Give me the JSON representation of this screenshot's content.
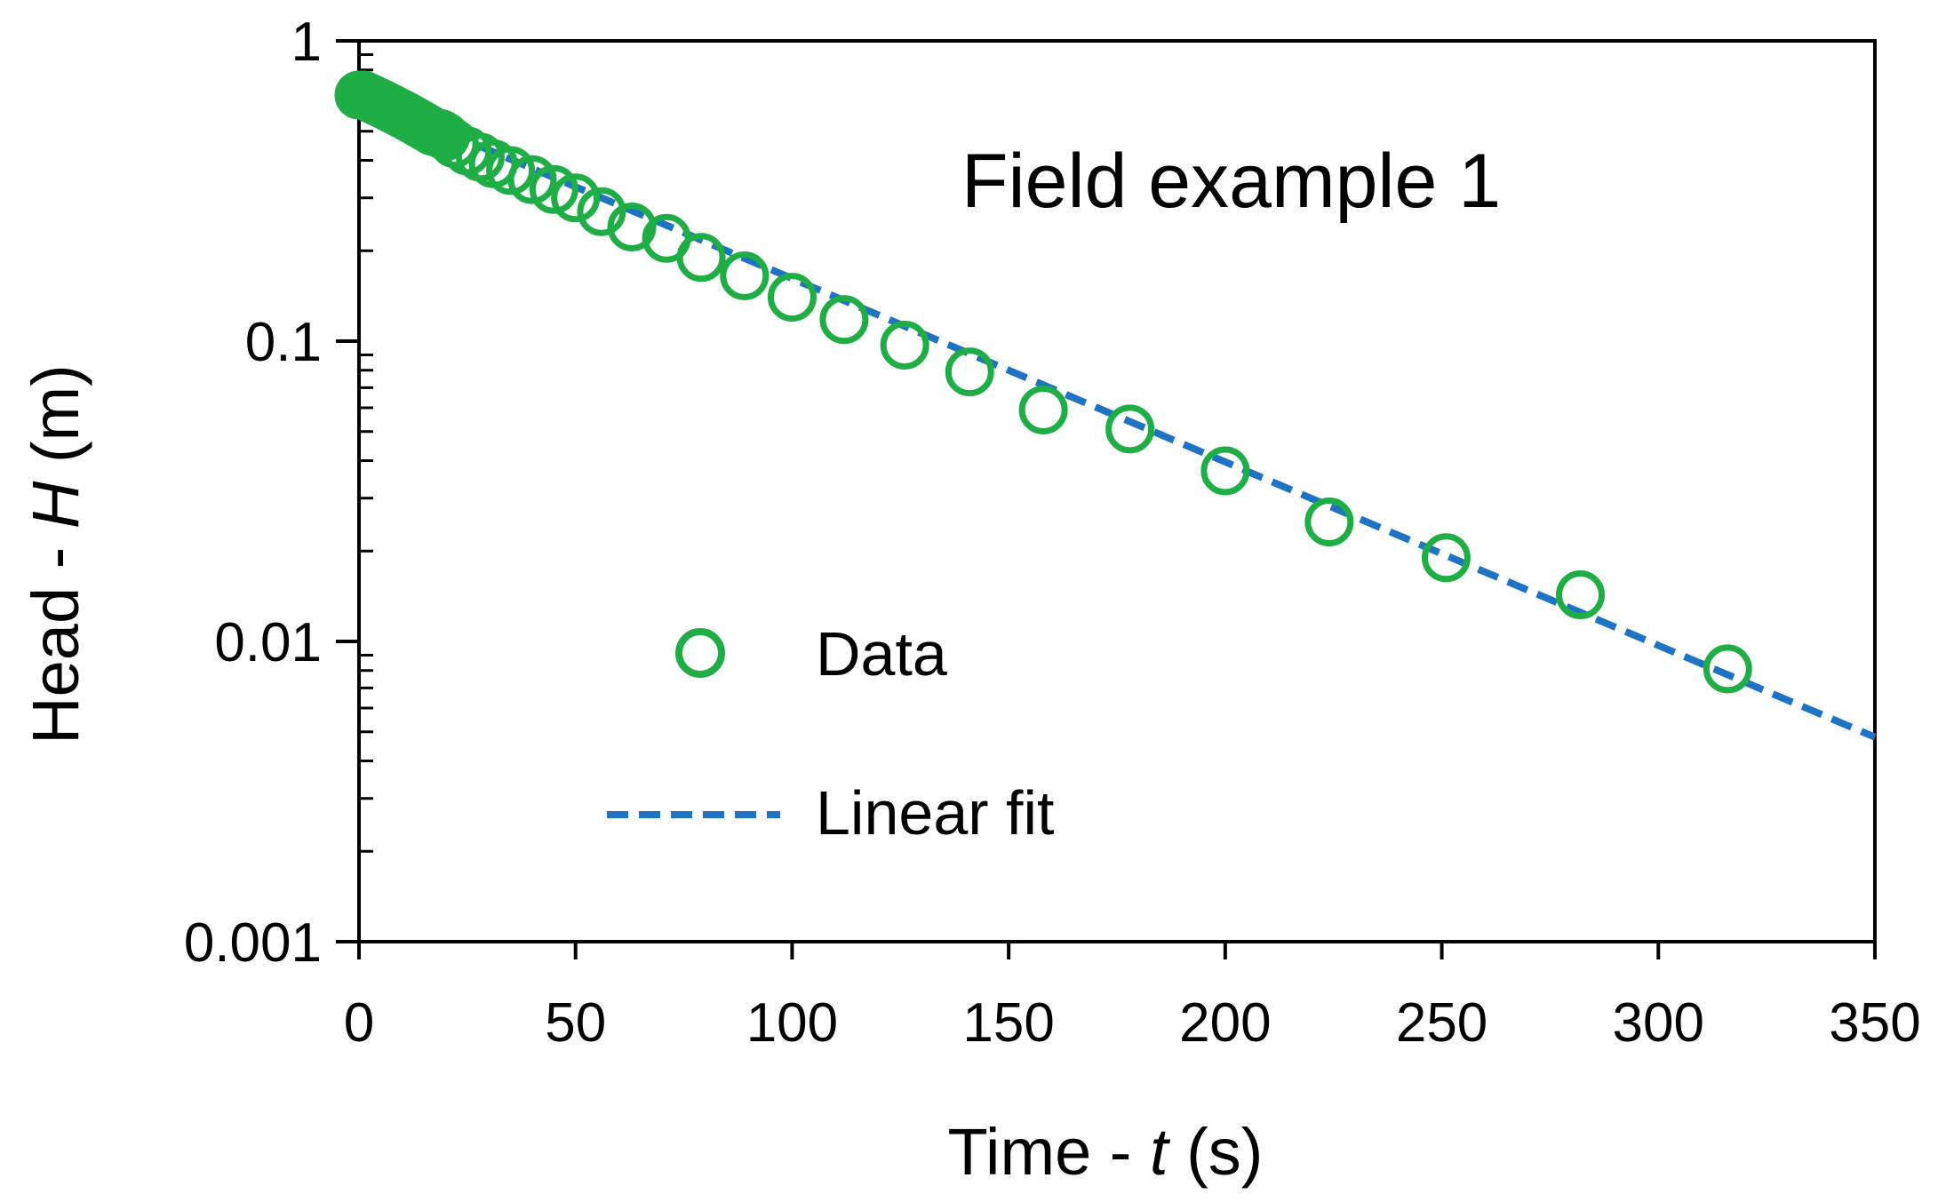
{
  "chart_data": {
    "type": "scatter",
    "title": "",
    "annotation": "Field example 1",
    "xlabel": {
      "prefix": "Time - ",
      "var": "t",
      "suffix": " (s)"
    },
    "ylabel": {
      "prefix": "Head - ",
      "var": "H",
      "suffix": " (m)"
    },
    "xlim": [
      0,
      350
    ],
    "ylim": [
      0.001,
      1
    ],
    "yscale": "log",
    "xticks": [
      0,
      50,
      100,
      150,
      200,
      250,
      300,
      350
    ],
    "xtick_labels": [
      "0",
      "50",
      "100",
      "150",
      "200",
      "250",
      "300",
      "350"
    ],
    "yticks": [
      0.001,
      0.01,
      0.1,
      1
    ],
    "ytick_labels": [
      "0.001",
      "0.01",
      "0.1",
      "1"
    ],
    "grid": false,
    "legend_position": "center-left",
    "colors": {
      "data": "#1fae45",
      "fit": "#1f73c4",
      "axis": "#000000"
    },
    "series": [
      {
        "name": "Data",
        "kind": "markers",
        "marker": "open-circle",
        "x": [
          0,
          1,
          2,
          3,
          4,
          5,
          6,
          7,
          8,
          9,
          10,
          11,
          12,
          13,
          14,
          15,
          16,
          17,
          18,
          19,
          20,
          22,
          25,
          28,
          31,
          35,
          40,
          45,
          50,
          56,
          63,
          71,
          79,
          89,
          100,
          112,
          126,
          141,
          158,
          178,
          200,
          224,
          251,
          282,
          316
        ],
        "y": [
          0.66,
          0.66,
          0.65,
          0.64,
          0.63,
          0.62,
          0.61,
          0.6,
          0.59,
          0.58,
          0.57,
          0.56,
          0.55,
          0.54,
          0.53,
          0.52,
          0.51,
          0.5,
          0.495,
          0.49,
          0.48,
          0.455,
          0.43,
          0.41,
          0.39,
          0.37,
          0.345,
          0.32,
          0.3,
          0.27,
          0.24,
          0.22,
          0.19,
          0.165,
          0.14,
          0.118,
          0.097,
          0.079,
          0.059,
          0.051,
          0.037,
          0.025,
          0.019,
          0.0143,
          0.0081
        ]
      },
      {
        "name": "Linear fit",
        "kind": "dashed-line",
        "x": [
          0,
          350
        ],
        "y": [
          0.66,
          0.0048
        ]
      }
    ]
  }
}
